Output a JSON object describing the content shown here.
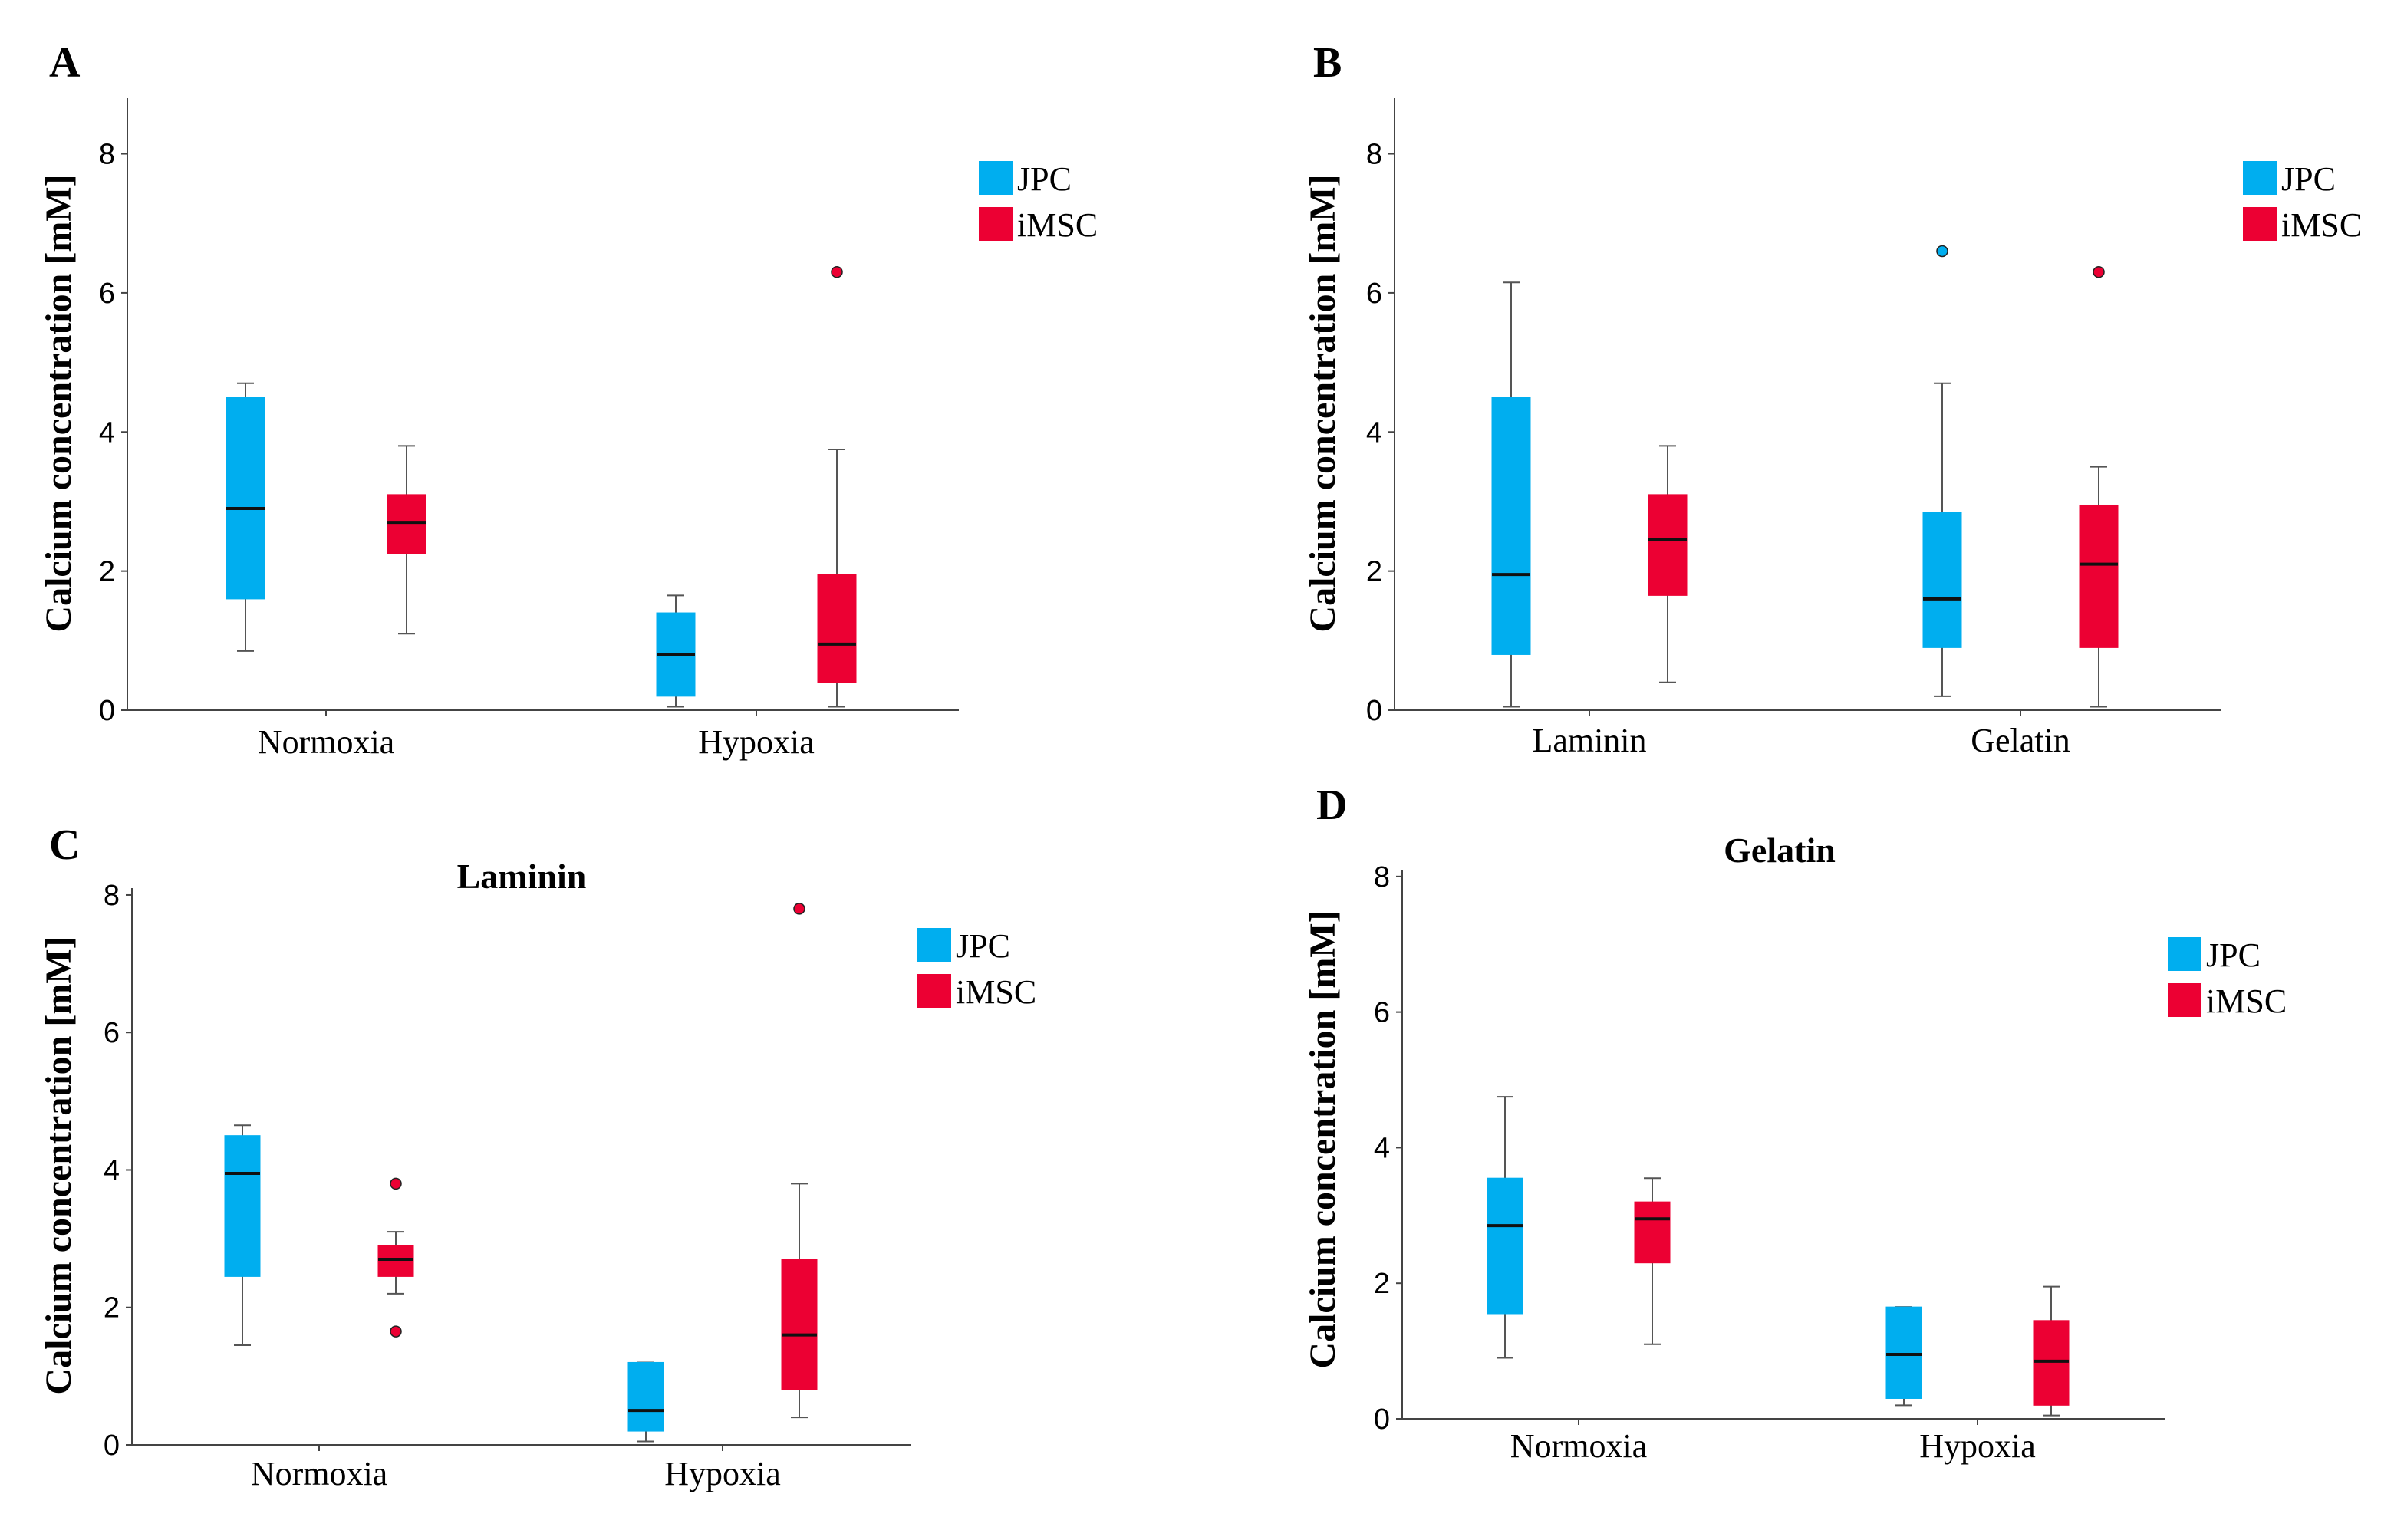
{
  "colors": {
    "JPC": "#00aeef",
    "iMSC": "#ec0033"
  },
  "panels": [
    {
      "letter": "A",
      "title": "",
      "ylabel": "Calcium concentration [mM]",
      "yticks": [
        0,
        2,
        4,
        6,
        8
      ],
      "legend": [
        "JPC",
        "iMSC"
      ],
      "categories": [
        "Normoxia",
        "Hypoxia"
      ]
    },
    {
      "letter": "B",
      "title": "",
      "ylabel": "Calcium concentration [mM]",
      "yticks": [
        0,
        2,
        4,
        6,
        8
      ],
      "legend": [
        "JPC",
        "iMSC"
      ],
      "categories": [
        "Laminin",
        "Gelatin"
      ]
    },
    {
      "letter": "C",
      "title": "Laminin",
      "ylabel": "Calcium concentration [mM]",
      "yticks": [
        0,
        2,
        4,
        6,
        8
      ],
      "legend": [
        "JPC",
        "iMSC"
      ],
      "categories": [
        "Normoxia",
        "Hypoxia"
      ]
    },
    {
      "letter": "D",
      "title": "Gelatin",
      "ylabel": "Calcium concentration [mM]",
      "yticks": [
        0,
        2,
        4,
        6,
        8
      ],
      "legend": [
        "JPC",
        "iMSC"
      ],
      "categories": [
        "Normoxia",
        "Hypoxia"
      ]
    }
  ],
  "chart_data": [
    {
      "type": "box",
      "panel": "A",
      "title": "",
      "ylabel": "Calcium concentration [mM]",
      "ylim": [
        0,
        8.8
      ],
      "categories": [
        "Normoxia",
        "Hypoxia"
      ],
      "series": [
        {
          "name": "JPC",
          "boxes": [
            {
              "min": 0.85,
              "q1": 1.6,
              "median": 2.9,
              "q3": 4.5,
              "max": 4.7,
              "outliers": []
            },
            {
              "min": 0.05,
              "q1": 0.2,
              "median": 0.8,
              "q3": 1.4,
              "max": 1.65,
              "outliers": []
            }
          ]
        },
        {
          "name": "iMSC",
          "boxes": [
            {
              "min": 1.1,
              "q1": 2.25,
              "median": 2.7,
              "q3": 3.1,
              "max": 3.8,
              "outliers": []
            },
            {
              "min": 0.05,
              "q1": 0.4,
              "median": 0.95,
              "q3": 1.95,
              "max": 3.75,
              "outliers": [
                6.3
              ]
            }
          ]
        }
      ]
    },
    {
      "type": "box",
      "panel": "B",
      "title": "",
      "ylabel": "Calcium concentration [mM]",
      "ylim": [
        0,
        8.8
      ],
      "categories": [
        "Laminin",
        "Gelatin"
      ],
      "series": [
        {
          "name": "JPC",
          "boxes": [
            {
              "min": 0.05,
              "q1": 0.8,
              "median": 1.95,
              "q3": 4.5,
              "max": 6.15,
              "outliers": []
            },
            {
              "min": 0.2,
              "q1": 0.9,
              "median": 1.6,
              "q3": 2.85,
              "max": 4.7,
              "outliers": [
                6.6
              ]
            }
          ]
        },
        {
          "name": "iMSC",
          "boxes": [
            {
              "min": 0.4,
              "q1": 1.65,
              "median": 2.45,
              "q3": 3.1,
              "max": 3.8,
              "outliers": []
            },
            {
              "min": 0.05,
              "q1": 0.9,
              "median": 2.1,
              "q3": 2.95,
              "max": 3.5,
              "outliers": [
                6.3
              ]
            }
          ]
        }
      ]
    },
    {
      "type": "box",
      "panel": "C",
      "title": "Laminin",
      "ylabel": "Calcium concentration [mM]",
      "ylim": [
        0,
        8.1
      ],
      "categories": [
        "Normoxia",
        "Hypoxia"
      ],
      "series": [
        {
          "name": "JPC",
          "boxes": [
            {
              "min": 1.45,
              "q1": 2.45,
              "median": 3.95,
              "q3": 4.5,
              "max": 4.65,
              "outliers": []
            },
            {
              "min": 0.05,
              "q1": 0.2,
              "median": 0.5,
              "q3": 1.2,
              "max": 1.2,
              "outliers": []
            }
          ]
        },
        {
          "name": "iMSC",
          "boxes": [
            {
              "min": 2.2,
              "q1": 2.45,
              "median": 2.7,
              "q3": 2.9,
              "max": 3.1,
              "outliers": [
                3.8,
                1.65
              ]
            },
            {
              "min": 0.4,
              "q1": 0.8,
              "median": 1.6,
              "q3": 2.7,
              "max": 3.8,
              "outliers": [
                7.8
              ]
            }
          ]
        }
      ]
    },
    {
      "type": "box",
      "panel": "D",
      "title": "Gelatin",
      "ylabel": "Calcium concentration [mM]",
      "ylim": [
        0,
        8.1
      ],
      "categories": [
        "Normoxia",
        "Hypoxia"
      ],
      "series": [
        {
          "name": "JPC",
          "boxes": [
            {
              "min": 0.9,
              "q1": 1.55,
              "median": 2.85,
              "q3": 3.55,
              "max": 4.75,
              "outliers": []
            },
            {
              "min": 0.2,
              "q1": 0.3,
              "median": 0.95,
              "q3": 1.65,
              "max": 1.65,
              "outliers": []
            }
          ]
        },
        {
          "name": "iMSC",
          "boxes": [
            {
              "min": 1.1,
              "q1": 2.3,
              "median": 2.95,
              "q3": 3.2,
              "max": 3.55,
              "outliers": []
            },
            {
              "min": 0.05,
              "q1": 0.2,
              "median": 0.85,
              "q3": 1.45,
              "max": 1.95,
              "outliers": []
            }
          ]
        }
      ]
    }
  ]
}
